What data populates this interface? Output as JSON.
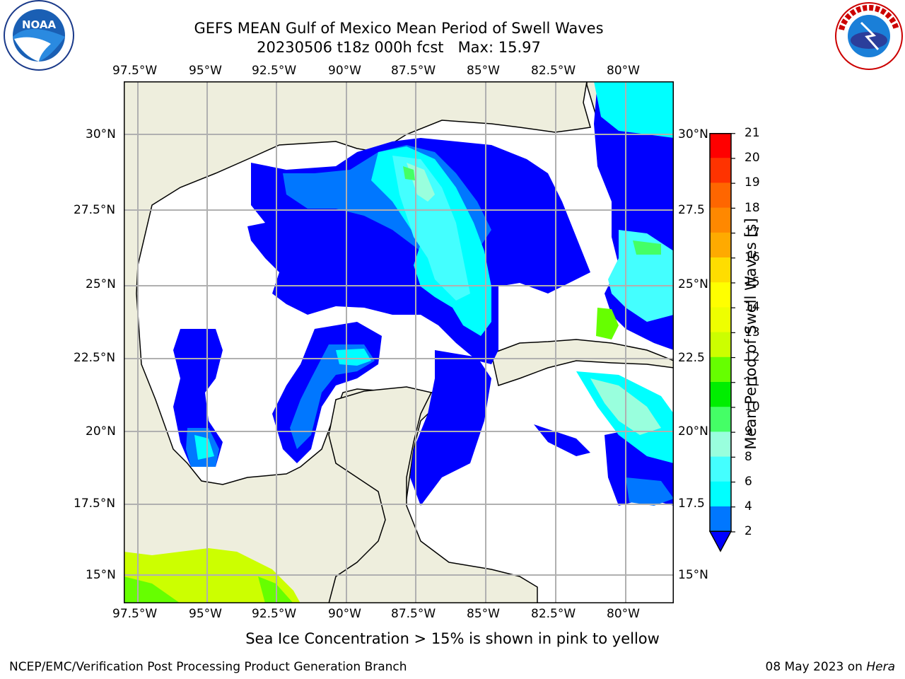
{
  "header": {
    "title_line1": "GEFS MEAN Gulf of Mexico Mean Period of Swell Waves",
    "title_line2": "20230506 t18z 000h fcst   Max: 15.97"
  },
  "logos": {
    "left": "noaa-logo",
    "right": "national-weather-service-logo"
  },
  "map": {
    "lon_labels": [
      "97.5°W",
      "95°W",
      "92.5°W",
      "90°W",
      "87.5°W",
      "85°W",
      "82.5°W",
      "80°W"
    ],
    "lat_labels": [
      "30°N",
      "27.5°N",
      "25°N",
      "22.5°N",
      "20°N",
      "17.5°N",
      "15°N"
    ],
    "lat_labels_right": [
      "30°N",
      "27.5",
      "25°N",
      "22.5",
      "20°N",
      "17.5",
      "15°N"
    ],
    "lon_range": [
      -98,
      -79
    ],
    "lat_range": [
      14,
      32
    ],
    "colors": {
      "land": "#eeeedd",
      "ocean_nodata": "#ffffff",
      "grid": "#b0b0b0",
      "coast": "#000000"
    }
  },
  "colorbar": {
    "label": "Mean Period of Swell Waves [s]",
    "ticks": [
      "21",
      "20",
      "19",
      "18",
      "17",
      "16",
      "15",
      "14",
      "13",
      "12",
      "11",
      "10",
      "9",
      "8",
      "6",
      "4",
      "2"
    ],
    "bins": [
      {
        "from": 20,
        "to": 21,
        "color": "#ff0000"
      },
      {
        "from": 19,
        "to": 20,
        "color": "#ff3300"
      },
      {
        "from": 18,
        "to": 19,
        "color": "#ff6600"
      },
      {
        "from": 17,
        "to": 18,
        "color": "#ff8800"
      },
      {
        "from": 16,
        "to": 17,
        "color": "#ffaa00"
      },
      {
        "from": 15,
        "to": 16,
        "color": "#ffdd00"
      },
      {
        "from": 14,
        "to": 15,
        "color": "#ffff00"
      },
      {
        "from": 13,
        "to": 14,
        "color": "#eeff00"
      },
      {
        "from": 12,
        "to": 13,
        "color": "#ccff00"
      },
      {
        "from": 11,
        "to": 12,
        "color": "#66ff00"
      },
      {
        "from": 10,
        "to": 11,
        "color": "#00ee00"
      },
      {
        "from": 9,
        "to": 10,
        "color": "#44ff66"
      },
      {
        "from": 8,
        "to": 9,
        "color": "#99ffdd"
      },
      {
        "from": 6,
        "to": 8,
        "color": "#44ffff"
      },
      {
        "from": 4,
        "to": 6,
        "color": "#00ffff"
      },
      {
        "from": 2,
        "to": 4,
        "color": "#0077ff"
      },
      {
        "from": 0,
        "to": 2,
        "color": "#0000ff"
      }
    ]
  },
  "note": "Sea Ice Concentration > 15% is shown in pink to yellow",
  "footer": {
    "left": "NCEP/EMC/Verification Post Processing Product Generation Branch",
    "right_date": "08 May 2023 on ",
    "right_host": "Hera"
  }
}
